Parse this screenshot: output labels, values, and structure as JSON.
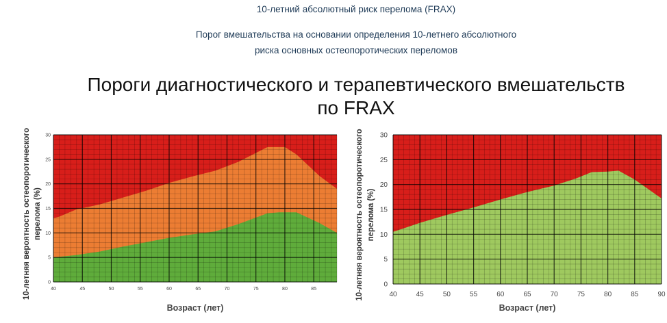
{
  "header": {
    "title": "10-летний абсолютный риск перелома (FRAX)",
    "subtitle_line1": "Порог вмешательства на основании определения 10-летнего абсолютного",
    "subtitle_line2": "риска основных остеопоротических переломов"
  },
  "slide": {
    "title_line1": "Пороги диагностического и терапевтического вмешательств",
    "title_line2": "по FRAX"
  },
  "colors": {
    "red": "#d81e1a",
    "orange": "#ec7d33",
    "green_dark": "#5fac3b",
    "green_light": "#9fc95f",
    "text_heading": "#1f3b57"
  },
  "chart_data": [
    {
      "type": "area",
      "xlabel": "Возраст (лет)",
      "ylabel_line1": "10-летняя вероятность остеопоротического",
      "ylabel_line2": "перелома (%)",
      "xticks": [
        40,
        45,
        50,
        55,
        60,
        65,
        70,
        75,
        80,
        85
      ],
      "yticks": [
        0,
        5,
        10,
        15,
        20,
        25,
        30
      ],
      "xlim": [
        40,
        89
      ],
      "ylim": [
        0,
        30
      ],
      "grid": true,
      "series": [
        {
          "color": "#d81e1a",
          "x": [
            40,
            89
          ],
          "y": [
            30,
            30
          ]
        },
        {
          "color": "#ec7d33",
          "x": [
            40,
            41,
            44,
            48,
            52,
            56,
            60,
            64,
            68,
            72,
            77,
            80,
            82,
            86,
            89
          ],
          "y": [
            13,
            13.3,
            14.8,
            15.8,
            17.2,
            18.6,
            20.2,
            21.5,
            22.7,
            24.5,
            27.5,
            27.5,
            26,
            21.6,
            19
          ]
        },
        {
          "color": "#5fac3b",
          "x": [
            40,
            44,
            48,
            52,
            56,
            60,
            64,
            68,
            72,
            77,
            79,
            82,
            86,
            89
          ],
          "y": [
            5,
            5.5,
            6.2,
            7.2,
            8.1,
            9,
            9.7,
            10.3,
            11.8,
            14,
            14.2,
            14.2,
            12,
            10
          ]
        }
      ]
    },
    {
      "type": "area",
      "xlabel": "Возраст (лет)",
      "ylabel_line1": "10-летняя вероятность остеопоротического",
      "ylabel_line2": "перелома (%)",
      "xticks": [
        40,
        45,
        50,
        55,
        60,
        65,
        70,
        75,
        80,
        85,
        90
      ],
      "yticks": [
        0,
        5,
        10,
        15,
        20,
        25,
        30
      ],
      "xlim": [
        40,
        90
      ],
      "ylim": [
        0,
        30
      ],
      "grid": true,
      "series": [
        {
          "color": "#d81e1a",
          "x": [
            40,
            90
          ],
          "y": [
            30,
            30
          ]
        },
        {
          "color": "#9fc95f",
          "x": [
            40,
            42,
            45,
            50,
            55,
            60,
            65,
            70,
            74,
            77,
            80,
            82,
            85,
            90
          ],
          "y": [
            10.5,
            11.2,
            12.3,
            13.9,
            15.4,
            17,
            18.5,
            19.8,
            21.2,
            22.5,
            22.6,
            22.8,
            21,
            17.2
          ]
        }
      ]
    }
  ]
}
